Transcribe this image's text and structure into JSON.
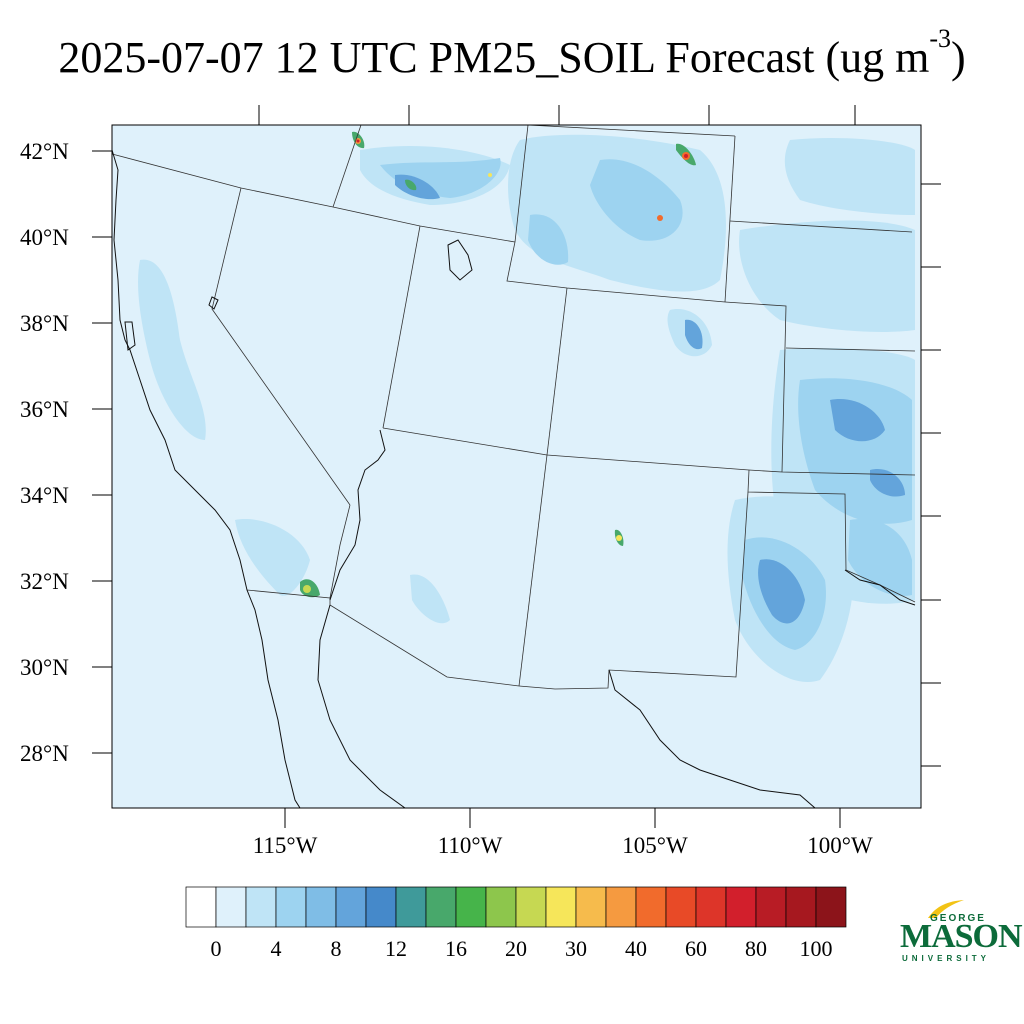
{
  "title": {
    "main": "2025-07-07 12 UTC PM25_SOIL Forecast (ug m",
    "superscript": "-3",
    "close": ")"
  },
  "lat_labels": [
    "42°N",
    "40°N",
    "38°N",
    "36°N",
    "34°N",
    "32°N",
    "30°N",
    "28°N"
  ],
  "lon_labels": [
    "115°W",
    "110°W",
    "105°W",
    "100°W"
  ],
  "colorbar": {
    "colors": [
      "#ffffff",
      "#dff1fb",
      "#bfe4f6",
      "#9dd3f0",
      "#7fbde6",
      "#63a4db",
      "#4589ca",
      "#3f9a9a",
      "#48a86b",
      "#46b44a",
      "#8dc64c",
      "#c6d852",
      "#f6e65a",
      "#f6bb4c",
      "#f59a40",
      "#f16b2c",
      "#e84a27",
      "#dd3529",
      "#d21f2c",
      "#b81c25",
      "#a6181f",
      "#8c141a"
    ],
    "labels": [
      "0",
      "4",
      "8",
      "12",
      "16",
      "20",
      "30",
      "40",
      "60",
      "80",
      "100"
    ]
  },
  "logo": {
    "line1": "GEORGE",
    "line2": "MASON",
    "line3": "UNIVERSITY"
  }
}
